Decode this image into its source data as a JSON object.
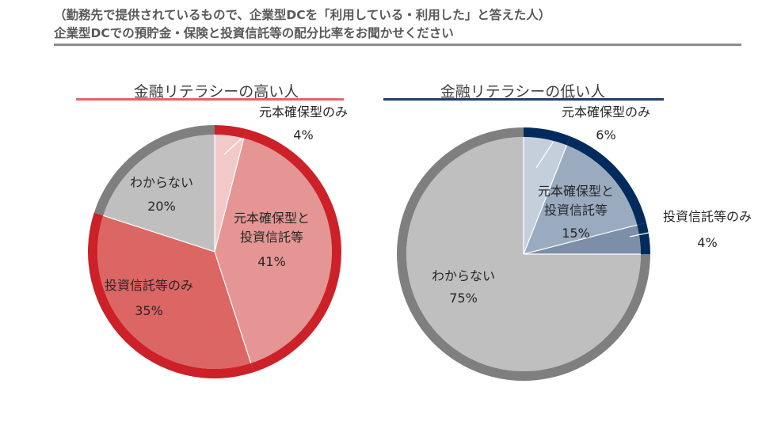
{
  "header": {
    "line1": "（勤務先で提供されているもので、企業型DCを「利用している・利用した」と答えた人）",
    "line2": "企業型DCでの預貯金・保険と投資信託等の配分比率をお聞かせください"
  },
  "colors": {
    "high_ring": "#cc2128",
    "high_rule": "#e06666",
    "low_ring_accent": "#002b5c",
    "low_rule": "#1f3f6e",
    "ring_gray": "#7f7f7f",
    "slice_gray": "#bfbfbf"
  },
  "chart_data": [
    {
      "type": "pie",
      "title": "金融リテラシーの高い人",
      "slices": [
        {
          "label": "元本確保型のみ",
          "value": 4,
          "value_label": "4%",
          "color": "#f2c9c9"
        },
        {
          "label": "元本確保型と\n投資信託等",
          "value": 41,
          "value_label": "41%",
          "color": "#e59593"
        },
        {
          "label": "投資信託等のみ",
          "value": 35,
          "value_label": "35%",
          "color": "#db6663"
        },
        {
          "label": "わからない",
          "value": 20,
          "value_label": "20%",
          "color": "#bfbfbf"
        }
      ]
    },
    {
      "type": "pie",
      "title": "金融リテラシーの低い人",
      "slices": [
        {
          "label": "元本確保型のみ",
          "value": 6,
          "value_label": "6%",
          "color": "#c5cfdc"
        },
        {
          "label": "元本確保型と\n投資信託等",
          "value": 15,
          "value_label": "15%",
          "color": "#9aabc0"
        },
        {
          "label": "投資信託等のみ",
          "value": 4,
          "value_label": "4%",
          "color": "#7d8fa8"
        },
        {
          "label": "わからない",
          "value": 75,
          "value_label": "75%",
          "color": "#bfbfbf"
        }
      ]
    }
  ]
}
